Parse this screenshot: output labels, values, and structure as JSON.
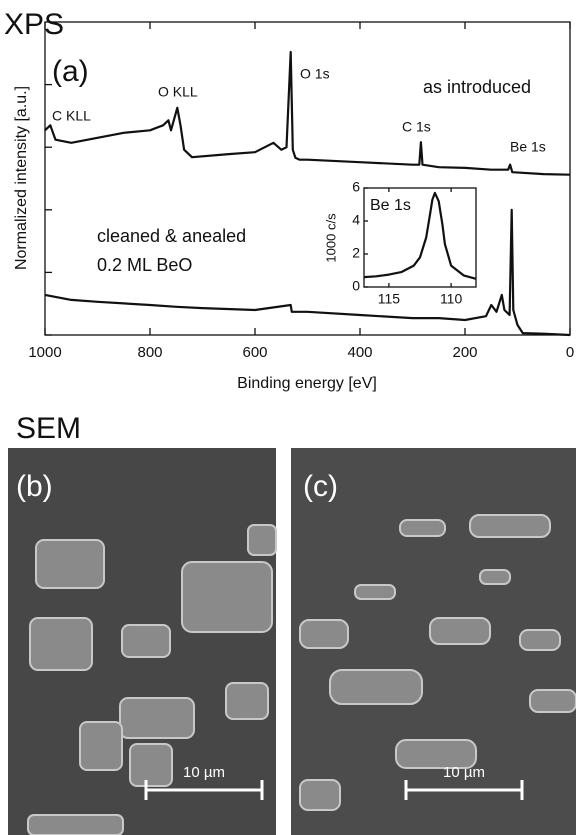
{
  "figure": {
    "xps_heading": "XPS",
    "sem_heading": "SEM",
    "panels": [
      {
        "label": "(b)",
        "scale_bar": "10 µm"
      },
      {
        "label": "(c)",
        "scale_bar": "10 µm"
      }
    ]
  },
  "chart_data": [
    {
      "type": "line",
      "panel_label": "(a)",
      "x_label": "Binding energy [eV]",
      "y_label": "Normalized intensity [a.u.]",
      "xlim": [
        1000,
        0
      ],
      "xticks": [
        1000,
        800,
        600,
        400,
        200,
        0
      ],
      "ylim": [
        0,
        5
      ],
      "yticks": [
        0,
        1,
        2,
        3,
        4
      ],
      "annotations": [
        "C KLL",
        "O KLL",
        "O 1s",
        "C 1s",
        "Be 1s",
        "0.2 ML BeO"
      ],
      "series": [
        {
          "name": "as introduced",
          "color": "#111111",
          "x": [
            1000,
            990,
            980,
            950,
            900,
            850,
            800,
            775,
            765,
            760,
            748,
            742,
            735,
            720,
            650,
            600,
            565,
            550,
            540,
            532,
            528,
            523,
            515,
            500,
            400,
            300,
            287,
            284,
            281,
            250,
            200,
            150,
            118,
            114,
            110,
            50,
            0
          ],
          "values": [
            3.27,
            3.35,
            3.12,
            3.07,
            3.15,
            3.23,
            3.27,
            3.35,
            3.43,
            3.27,
            3.63,
            3.35,
            2.96,
            2.84,
            2.89,
            2.92,
            3.07,
            2.96,
            3.0,
            4.52,
            2.96,
            2.83,
            2.8,
            2.8,
            2.76,
            2.72,
            2.72,
            3.08,
            2.72,
            2.68,
            2.67,
            2.64,
            2.64,
            2.72,
            2.6,
            2.57,
            2.56
          ]
        },
        {
          "name": "cleaned & anealed",
          "color": "#111111",
          "x": [
            1000,
            950,
            900,
            800,
            750,
            700,
            600,
            532,
            530,
            500,
            400,
            300,
            250,
            200,
            160,
            150,
            140,
            130,
            125,
            115,
            111,
            108,
            100,
            90,
            50,
            0
          ],
          "values": [
            0.64,
            0.56,
            0.53,
            0.48,
            0.45,
            0.43,
            0.4,
            0.48,
            0.37,
            0.37,
            0.32,
            0.27,
            0.27,
            0.24,
            0.3,
            0.48,
            0.37,
            0.64,
            0.4,
            0.32,
            2.0,
            0.4,
            0.16,
            0.03,
            0.02,
            0
          ]
        }
      ]
    },
    {
      "type": "line",
      "title": "Be 1s",
      "y_label": "1000 c/s",
      "xlim": [
        117,
        108
      ],
      "xticks": [
        115,
        110
      ],
      "ylim": [
        0,
        6
      ],
      "yticks": [
        0,
        2,
        4,
        6
      ],
      "series": [
        {
          "color": "#111111",
          "x": [
            117,
            116,
            115,
            114,
            113,
            112.5,
            112,
            111.7,
            111.5,
            111.3,
            111,
            110.7,
            110.5,
            110,
            109,
            108
          ],
          "values": [
            0.6,
            0.65,
            0.75,
            0.9,
            1.3,
            1.8,
            3.0,
            4.4,
            5.3,
            5.7,
            5.2,
            3.8,
            2.6,
            1.3,
            0.7,
            0.5
          ]
        }
      ]
    }
  ]
}
